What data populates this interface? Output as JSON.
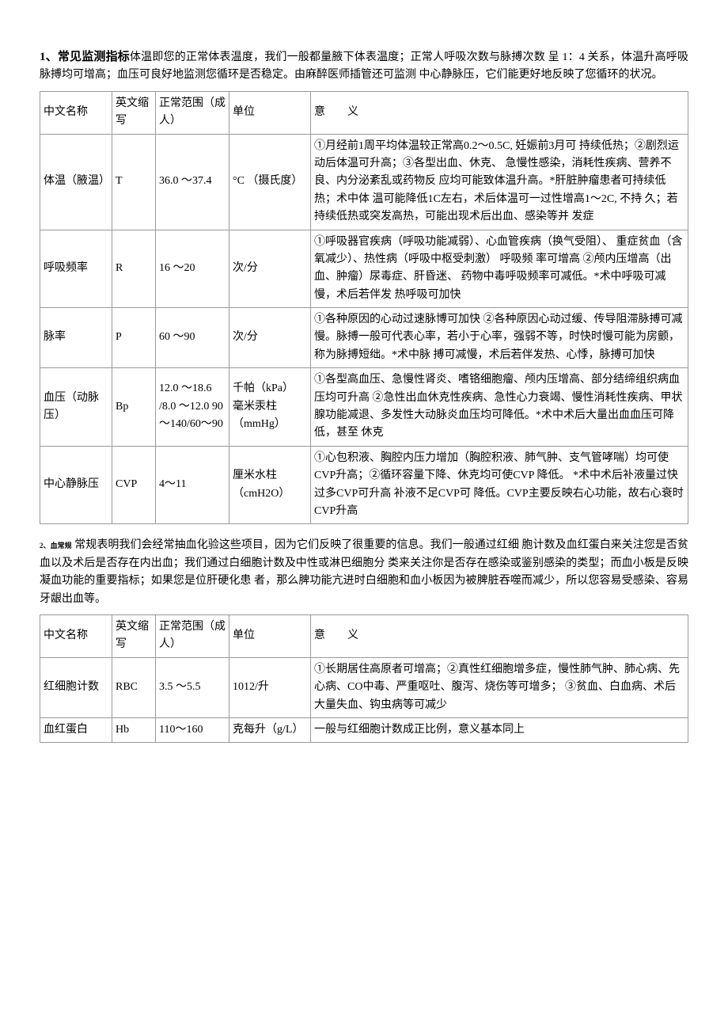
{
  "section1": {
    "title": "1、常见监测指标",
    "intro": "体温即您的正常体表温度，我们一般都量腋下体表温度；正常人呼吸次数与脉搏次数 呈 1：4 关系，体温升高呼吸脉搏均可增高；血压可良好地监测您循环是否稳定。由麻醉医师插管还可监测 中心静脉压，它们能更好地反映了您循环的状况。",
    "headers": {
      "name": "中文名称",
      "abbr": "英文缩写",
      "range": "正常范围（成人）",
      "unit": "单位",
      "meaning": "意　　义"
    },
    "rows": [
      {
        "name": "体温（腋温）",
        "abbr": "T",
        "range": "36.0 〜37.4",
        "unit": "°C （摄氏度）",
        "meaning": "①月经前1周平均体温较正常高0.2〜0.5C, 妊娠前3月可 持续低热；②剧烈运动后体温可升高；③各型出血、休克、 急慢性感染，消耗性疾病、营养不良、内分泌紊乱或药物反 应均可能致体温升高。*肝脏肿瘤患者可持续低热；术中体 温可能降低1C左右，术后体温可一过性增高1〜2C, 不持 久；若持续低热或突发高热，可能出现术后出血、感染等并 发症"
      },
      {
        "name": "呼吸频率",
        "abbr": "R",
        "range": "16 〜20",
        "unit": "次/分",
        "meaning": "①呼吸器官疾病（呼吸功能减弱）、心血管疾病（换气受阻）、 重症贫血（含氧减少）、热性病（呼吸中枢受刺激） 呼吸频 率可增高 ②颅内压增高（出血、肿瘤）尿毒症、肝昏迷、 药物中毒呼吸频率可减低。*术中呼吸可减慢，术后若伴发 热呼吸可加快"
      },
      {
        "name": "脉率",
        "abbr": "P",
        "range": "60 〜90",
        "unit": "次/分",
        "meaning": "①各种原因的心动过速脉博可加快 ②各种原因心动过缓、传导阻滞脉搏可减慢。脉搏一般可代表心率，若小于心率，强弱不等，时快时慢可能为房颤，称为脉搏短绌。*术中脉 搏可减慢，术后若伴发热、心悸，脉搏可加快"
      },
      {
        "name": "血压（动脉压）",
        "abbr": "Bp",
        "range": "12.0 〜18.6 /8.0 〜12.0 90 〜140/60〜90",
        "unit": "千帕（kPa） 毫米汞柱 （mmHg）",
        "meaning": "①各型高血压、急慢性肾炎、嗜铬细胞瘤、颅内压增高、部分结缔组织病血压均可升高 ②急性出血休克性疾病、急性心力衰竭、慢性消耗性疾病、甲状腺功能减退、多发性大动脉炎血压均可降低。*术中术后大量出血血压可降低，甚至 休克"
      },
      {
        "name": "中心静脉压",
        "abbr": "CVP",
        "range": "4〜11",
        "unit": "厘米水柱 （cmH2O）",
        "meaning": "①心包积液、胸腔内压力增加（胸腔积液、肺气肿、支气管哮喘）均可使CVP升高；②循环容量下降、休克均可使CVP 降低。\n*术中术后补液量过快过多CVP可升高 补液不足CVP可 降低。CVP主要反映右心功能，故右心衰时CVP升高"
      }
    ]
  },
  "section2": {
    "label": "2、血常规",
    "intro": "常规表明我们会经常抽血化验这些项目，因为它们反映了很重要的信息。我们一般通过红细 胞计数及血红蛋白来关注您是否贫血以及术后是否存在内出血；我们通过白细胞计数及中性或淋巴细胞分 类来关注你是否存在感染或鉴别感染的类型；而血小板是反映凝血功能的重要指标；如果您是位肝硬化患 者，那么脾功能亢进时白细胞和血小板因为被脾脏吞噬而减少，所以您容易受感染、容易牙龈出血等。",
    "headers": {
      "name": "中文名称",
      "abbr": "英文缩写",
      "range": "正常范围（成人）",
      "unit": "单位",
      "meaning": "意　　义"
    },
    "rows": [
      {
        "name": "红细胞计数",
        "abbr": "RBC",
        "range": "3.5 〜5.5",
        "unit": "1012/升",
        "meaning": "①长期居住高原者可增高；②真性红细胞增多症，慢性肺气肿、肺心病、先心病、CO中毒、严重呕吐、腹泻、烧伤等可增多；\n③贫血、白血病、术后大量失血、钩虫病等可减少"
      },
      {
        "name": "血红蛋白",
        "abbr": "Hb",
        "range": "110〜160",
        "unit": "克每升（g/L）",
        "meaning": "一般与红细胞计数成正比例，意义基本同上"
      }
    ]
  }
}
